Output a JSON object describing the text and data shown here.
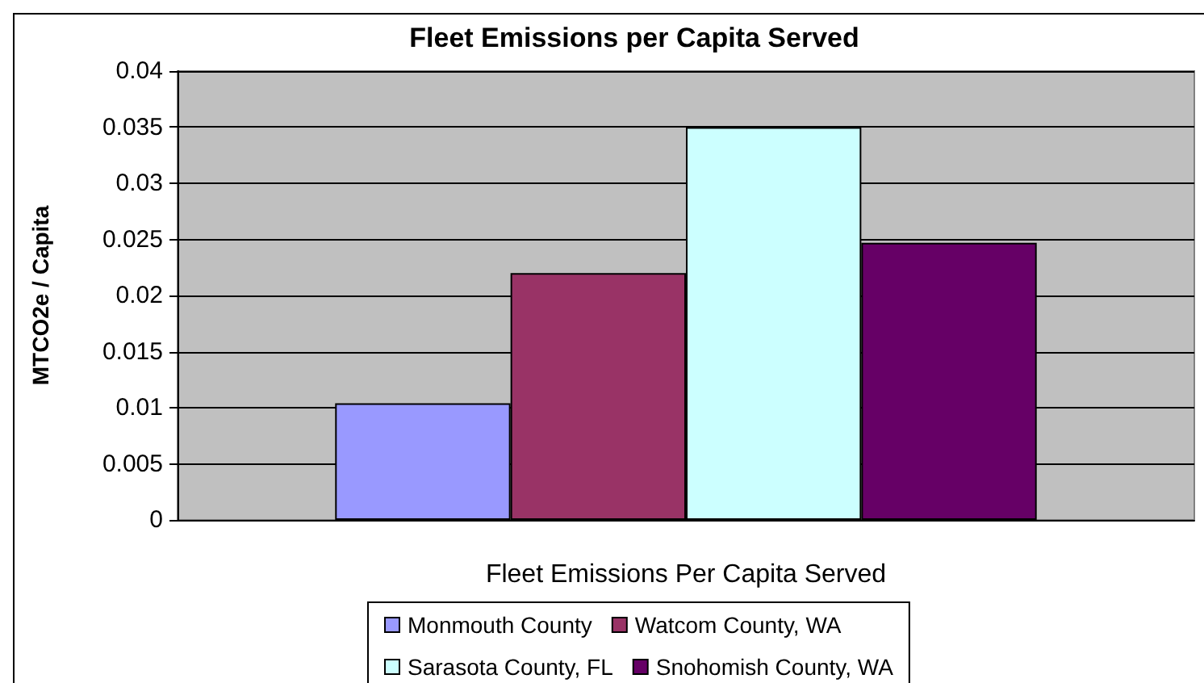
{
  "chart_data": {
    "type": "bar",
    "title": "Fleet Emissions per Capita Served",
    "xlabel": "Fleet Emissions Per Capita Served",
    "ylabel": "MTCO2e / Capita",
    "categories": [
      null
    ],
    "series": [
      {
        "name": "Monmouth County",
        "color": "#9999ff",
        "values": [
          0.0104
        ]
      },
      {
        "name": "Watcom County, WA",
        "color": "#993366",
        "values": [
          0.022
        ]
      },
      {
        "name": "Sarasota County, FL",
        "color": "#ccffff",
        "values": [
          0.035
        ]
      },
      {
        "name": "Snohomish County, WA",
        "color": "#660066",
        "values": [
          0.0247
        ]
      }
    ],
    "ylim": [
      0,
      0.04
    ],
    "yticks": [
      0,
      0.005,
      0.01,
      0.015,
      0.02,
      0.025,
      0.03,
      0.035,
      0.04
    ],
    "grid": "y",
    "legend": "bottom"
  }
}
